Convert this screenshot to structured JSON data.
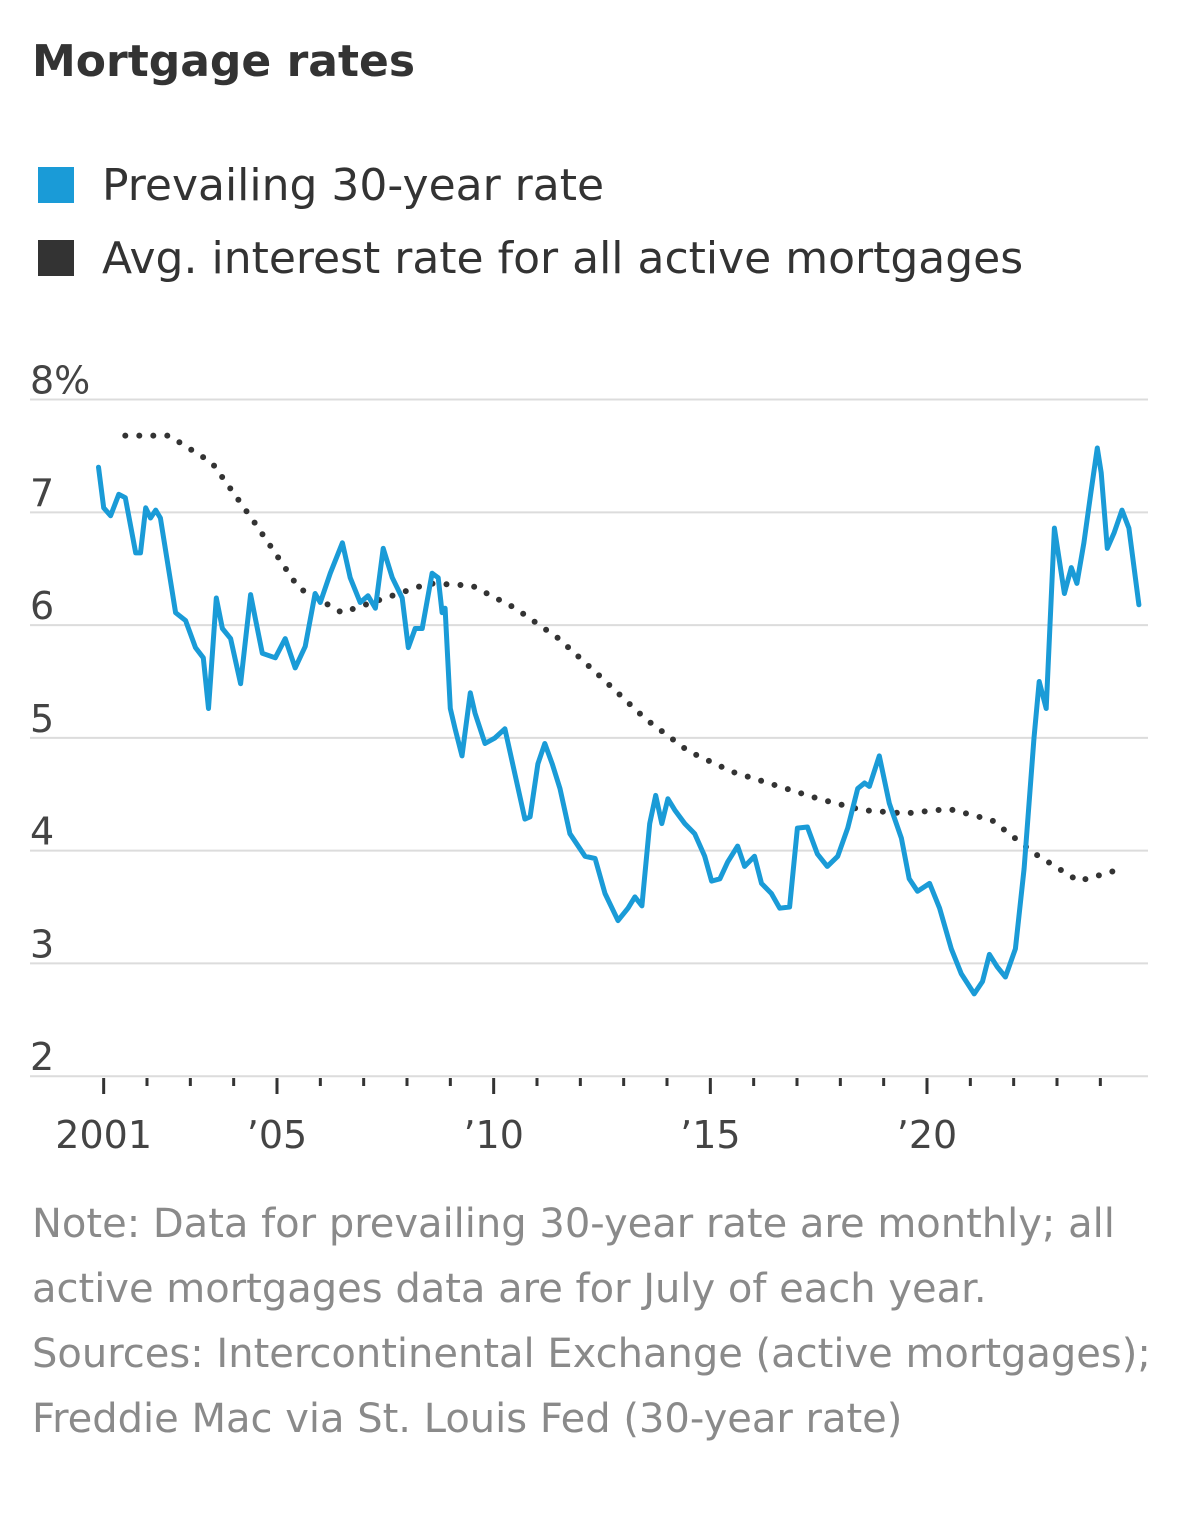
{
  "chart_data": {
    "type": "line",
    "title": "Mortgage rates",
    "series": [
      {
        "name": "Prevailing 30-year rate",
        "color": "#1a9bd7",
        "style": "solid",
        "x": [
          2000.88,
          2001.0,
          2001.16,
          2001.35,
          2001.5,
          2001.74,
          2001.85,
          2001.97,
          2002.08,
          2002.2,
          2002.31,
          2002.66,
          2002.89,
          2003.12,
          2003.3,
          2003.42,
          2003.6,
          2003.74,
          2003.93,
          2004.16,
          2004.39,
          2004.5,
          2004.66,
          2004.96,
          2005.19,
          2005.42,
          2005.65,
          2005.88,
          2006.0,
          2006.23,
          2006.51,
          2006.69,
          2006.92,
          2007.1,
          2007.27,
          2007.45,
          2007.66,
          2007.89,
          2008.03,
          2008.19,
          2008.35,
          2008.58,
          2008.72,
          2008.81,
          2008.88,
          2009.0,
          2009.11,
          2009.27,
          2009.46,
          2009.57,
          2009.8,
          2010.03,
          2010.26,
          2010.49,
          2010.72,
          2010.84,
          2011.02,
          2011.18,
          2011.35,
          2011.53,
          2011.76,
          2012.11,
          2012.34,
          2012.57,
          2012.87,
          2013.1,
          2013.26,
          2013.42,
          2013.6,
          2013.74,
          2013.88,
          2014.02,
          2014.18,
          2014.41,
          2014.64,
          2014.87,
          2015.03,
          2015.22,
          2015.4,
          2015.63,
          2015.79,
          2016.02,
          2016.18,
          2016.41,
          2016.6,
          2016.83,
          2017.01,
          2017.24,
          2017.47,
          2017.7,
          2017.94,
          2018.17,
          2018.4,
          2018.56,
          2018.67,
          2018.9,
          2019.13,
          2019.41,
          2019.59,
          2019.78,
          2020.06,
          2020.29,
          2020.56,
          2020.79,
          2021.09,
          2021.28,
          2021.44,
          2021.62,
          2021.81,
          2022.04,
          2022.24,
          2022.47,
          2022.59,
          2022.75,
          2022.94,
          2023.17,
          2023.33,
          2023.46,
          2023.62,
          2023.78,
          2023.93,
          2024.02,
          2024.16,
          2024.32,
          2024.5,
          2024.66,
          2024.89
        ],
        "values": [
          7.4,
          7.04,
          6.97,
          7.16,
          7.13,
          6.64,
          6.64,
          7.04,
          6.95,
          7.02,
          6.95,
          6.11,
          6.04,
          5.8,
          5.71,
          5.26,
          6.24,
          5.97,
          5.88,
          5.48,
          6.27,
          6.06,
          5.75,
          5.71,
          5.88,
          5.62,
          5.81,
          6.28,
          6.2,
          6.46,
          6.73,
          6.42,
          6.2,
          6.26,
          6.15,
          6.68,
          6.42,
          6.24,
          5.8,
          5.97,
          5.97,
          6.46,
          6.42,
          6.11,
          6.15,
          5.26,
          5.08,
          4.84,
          5.4,
          5.22,
          4.95,
          5.0,
          5.08,
          4.68,
          4.28,
          4.3,
          4.77,
          4.95,
          4.77,
          4.55,
          4.15,
          3.95,
          3.93,
          3.62,
          3.38,
          3.49,
          3.59,
          3.51,
          4.24,
          4.49,
          4.24,
          4.46,
          4.36,
          4.24,
          4.15,
          3.95,
          3.73,
          3.75,
          3.9,
          4.04,
          3.86,
          3.95,
          3.71,
          3.62,
          3.49,
          3.5,
          4.2,
          4.21,
          3.97,
          3.86,
          3.95,
          4.2,
          4.55,
          4.6,
          4.57,
          4.84,
          4.42,
          4.11,
          3.75,
          3.64,
          3.71,
          3.49,
          3.13,
          2.91,
          2.73,
          2.84,
          3.08,
          2.97,
          2.88,
          3.13,
          3.84,
          5.0,
          5.5,
          5.26,
          6.86,
          6.28,
          6.51,
          6.37,
          6.73,
          7.17,
          7.57,
          7.35,
          6.68,
          6.82,
          7.02,
          6.86,
          6.18
        ]
      },
      {
        "name": "Avg. interest rate for all active mortgages",
        "color": "#333333",
        "style": "dotted",
        "x": [
          2001.5,
          2002.5,
          2003.5,
          2004.5,
          2005.5,
          2006.5,
          2007.5,
          2008.5,
          2009.5,
          2010.5,
          2011.5,
          2012.5,
          2013.5,
          2014.5,
          2015.5,
          2016.5,
          2017.5,
          2018.5,
          2019.5,
          2020.5,
          2021.5,
          2022.5,
          2023.5,
          2024.5
        ],
        "values": [
          7.68,
          7.68,
          7.44,
          6.9,
          6.33,
          6.11,
          6.24,
          6.37,
          6.35,
          6.15,
          5.88,
          5.53,
          5.17,
          4.88,
          4.7,
          4.58,
          4.46,
          4.36,
          4.33,
          4.37,
          4.27,
          3.97,
          3.73,
          3.84
        ]
      }
    ],
    "xlim": [
      1999.3,
      2025.1
    ],
    "xticks": [
      2001,
      {
        "value": 2005,
        "label": "’05"
      },
      {
        "value": 2010,
        "label": "’10"
      },
      {
        "value": 2015,
        "label": "’15"
      },
      {
        "value": 2020,
        "label": "’20"
      }
    ],
    "xminor_ticks": [
      2002,
      2003,
      2004,
      2006,
      2007,
      2008,
      2009,
      2011,
      2012,
      2013,
      2014,
      2016,
      2017,
      2018,
      2019,
      2021,
      2022,
      2023,
      2024
    ],
    "ylim": [
      1.86,
      8.12
    ],
    "yticks": [
      {
        "value": 8,
        "label": "8%"
      },
      7,
      6,
      5,
      4,
      3,
      2
    ],
    "grid": true,
    "notes": [
      "Note: Data for prevailing 30-year rate are monthly; all active mortgages data are for July of each year.",
      "Sources: Intercontinental Exchange (active mortgages); Freddie Mac via St. Louis Fed (30-year rate)"
    ]
  }
}
